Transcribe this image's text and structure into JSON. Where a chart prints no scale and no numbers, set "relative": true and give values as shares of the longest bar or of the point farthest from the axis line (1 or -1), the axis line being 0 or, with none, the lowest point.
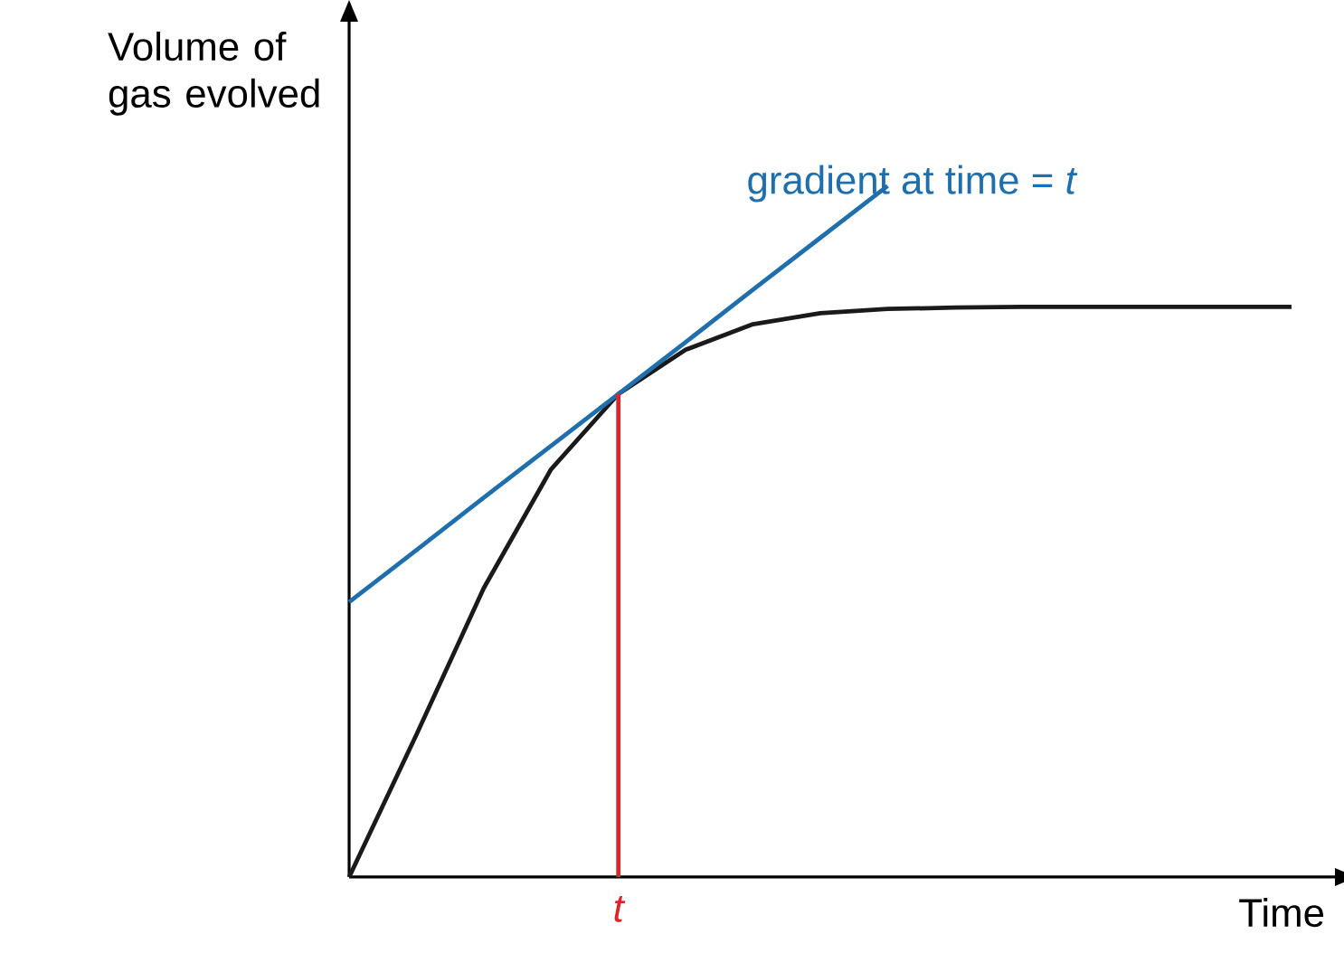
{
  "chart_data": {
    "type": "line",
    "relative": true,
    "xlabel": "Time",
    "ylabel": "Volume of gas evolved",
    "annotations": [
      "gradient at time = *t*",
      "t"
    ],
    "categories": [
      null,
      null,
      null,
      null,
      null,
      null,
      null,
      null,
      null,
      null,
      null,
      null,
      null,
      null,
      null
    ],
    "series": [
      {
        "color": "#1a1a1a",
        "values": [
          0,
          0.206,
          0.418,
          0.59,
          0.699,
          0.763,
          0.8,
          0.816,
          0.822,
          0.824,
          0.825,
          0.825,
          0.825,
          0.825,
          0.825
        ]
      },
      {
        "color": "#1f6fad",
        "values": [
          0.398,
          0.473,
          0.549,
          0.624,
          0.699,
          0.774,
          0.85,
          0.925,
          1.0,
          null,
          null,
          null,
          null,
          null,
          null
        ]
      }
    ]
  }
}
